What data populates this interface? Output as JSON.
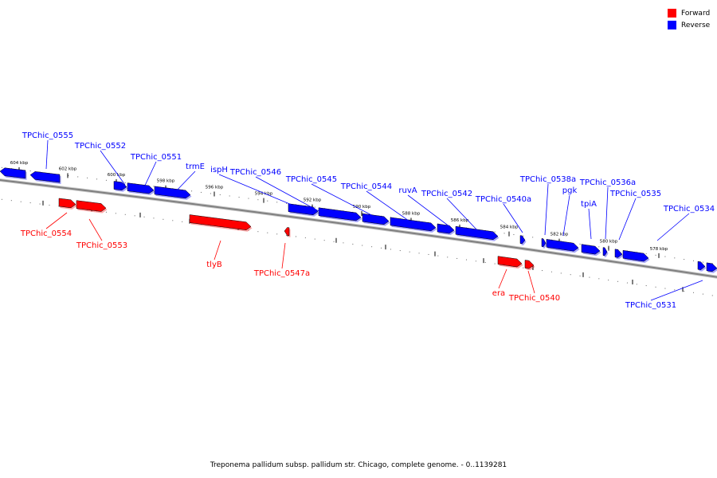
{
  "colors": {
    "forward": "#ff0000",
    "reverse": "#0000ff",
    "backbone": "#808080"
  },
  "legend": [
    {
      "label": "Forward",
      "color": "#ff0000"
    },
    {
      "label": "Reverse",
      "color": "#0000ff"
    }
  ],
  "ticks": [
    "604 kbp",
    "602 kbp",
    "600 kbp",
    "598 kbp",
    "596 kbp",
    "594 kbp",
    "592 kbp",
    "590 kbp",
    "588 kbp",
    "586 kbp",
    "584 kbp",
    "582 kbp",
    "580 kbp",
    "578 kbp"
  ],
  "genes_forward": [
    "TPChic_0554",
    "TPChic_0553",
    "tlyB",
    "TPChic_0547a",
    "era",
    "TPChic_0540"
  ],
  "genes_reverse": [
    "TPChic_0555",
    "TPChic_0552",
    "TPChic_0551",
    "trmE",
    "ispH",
    "TPChic_0546",
    "TPChic_0545",
    "TPChic_0544",
    "ruvA",
    "TPChic_0542",
    "TPChic_0540a",
    "TPChic_0538a",
    "pgk",
    "tpiA",
    "TPChic_0536a",
    "TPChic_0535",
    "TPChic_0534",
    "TPChic_0531"
  ],
  "caption": "Treponema pallidum subsp. pallidum str. Chicago, complete genome. - 0..1139281"
}
